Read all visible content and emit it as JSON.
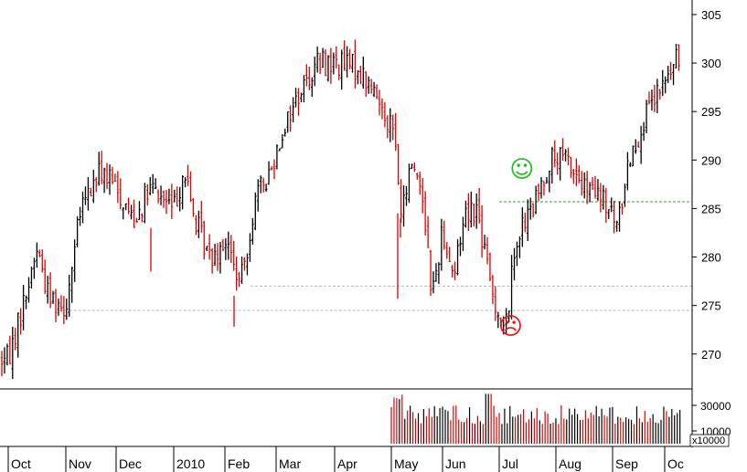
{
  "chart_data": {
    "type": "candlestick",
    "colors": {
      "up": "#000000",
      "down": "#e00000",
      "grid": "#b8b8b8",
      "signal_line": "#2ca02c",
      "smiley_happy": "#22bb22",
      "smiley_sad": "#ee1111"
    },
    "y_axis": {
      "ticks": [
        270,
        275,
        280,
        285,
        290,
        295,
        300,
        305
      ],
      "range": [
        266.4,
        306.5
      ]
    },
    "x_axis": {
      "labels": [
        "Oct",
        "Nov",
        "Dec",
        "2010",
        "Feb",
        "Mar",
        "Apr",
        "May",
        "Jun",
        "Jul",
        "Aug",
        "Sep",
        "Oc"
      ]
    },
    "reference_lines": [
      {
        "value": 274.5,
        "style": "dashed",
        "color": "#b8b8b8"
      },
      {
        "value": 277.0,
        "style": "dashed",
        "color": "#b8b8b8"
      },
      {
        "value": 285.7,
        "style": "dashed",
        "color": "#2ca02c"
      }
    ],
    "markers": [
      {
        "symbol": "happy-face",
        "glyph": "☺",
        "month_position": 9.4,
        "value": 289.0
      },
      {
        "symbol": "sad-face",
        "glyph": "☹",
        "month_position": 9.2,
        "value": 272.8
      }
    ],
    "close_path": [
      [
        0,
        269.5
      ],
      [
        0.3,
        276
      ],
      [
        0.5,
        281
      ],
      [
        0.7,
        276
      ],
      [
        1.0,
        275
      ],
      [
        1.3,
        285
      ],
      [
        1.7,
        289
      ],
      [
        2.0,
        287
      ],
      [
        2.3,
        284
      ],
      [
        2.6,
        287
      ],
      [
        3.0,
        285
      ],
      [
        3.2,
        289
      ],
      [
        3.4,
        284
      ],
      [
        3.7,
        280
      ],
      [
        4.0,
        282
      ],
      [
        4.3,
        277
      ],
      [
        4.6,
        286
      ],
      [
        4.9,
        289
      ],
      [
        5.1,
        293
      ],
      [
        5.4,
        297
      ],
      [
        5.7,
        300
      ],
      [
        6.0,
        300
      ],
      [
        6.4,
        299.5
      ],
      [
        6.8,
        296
      ],
      [
        7.05,
        293
      ],
      [
        7.2,
        284
      ],
      [
        7.4,
        290
      ],
      [
        7.6,
        287
      ],
      [
        7.8,
        276
      ],
      [
        8.0,
        283
      ],
      [
        8.2,
        278
      ],
      [
        8.4,
        285
      ],
      [
        8.6,
        285
      ],
      [
        8.85,
        277
      ],
      [
        9.1,
        272
      ],
      [
        9.3,
        282
      ],
      [
        9.6,
        285
      ],
      [
        9.9,
        290
      ],
      [
        10.2,
        290
      ],
      [
        10.5,
        287
      ],
      [
        10.8,
        286
      ],
      [
        11.1,
        283
      ],
      [
        11.3,
        290
      ],
      [
        11.6,
        294
      ],
      [
        11.9,
        297
      ],
      [
        12.2,
        300
      ],
      [
        12.45,
        301.5
      ]
    ],
    "volume": {
      "ticks": [
        30000,
        10000
      ],
      "scale_label": "x10000",
      "start_month_position": 7.0,
      "max": 40000,
      "typical_range": [
        15000,
        30000
      ]
    }
  }
}
